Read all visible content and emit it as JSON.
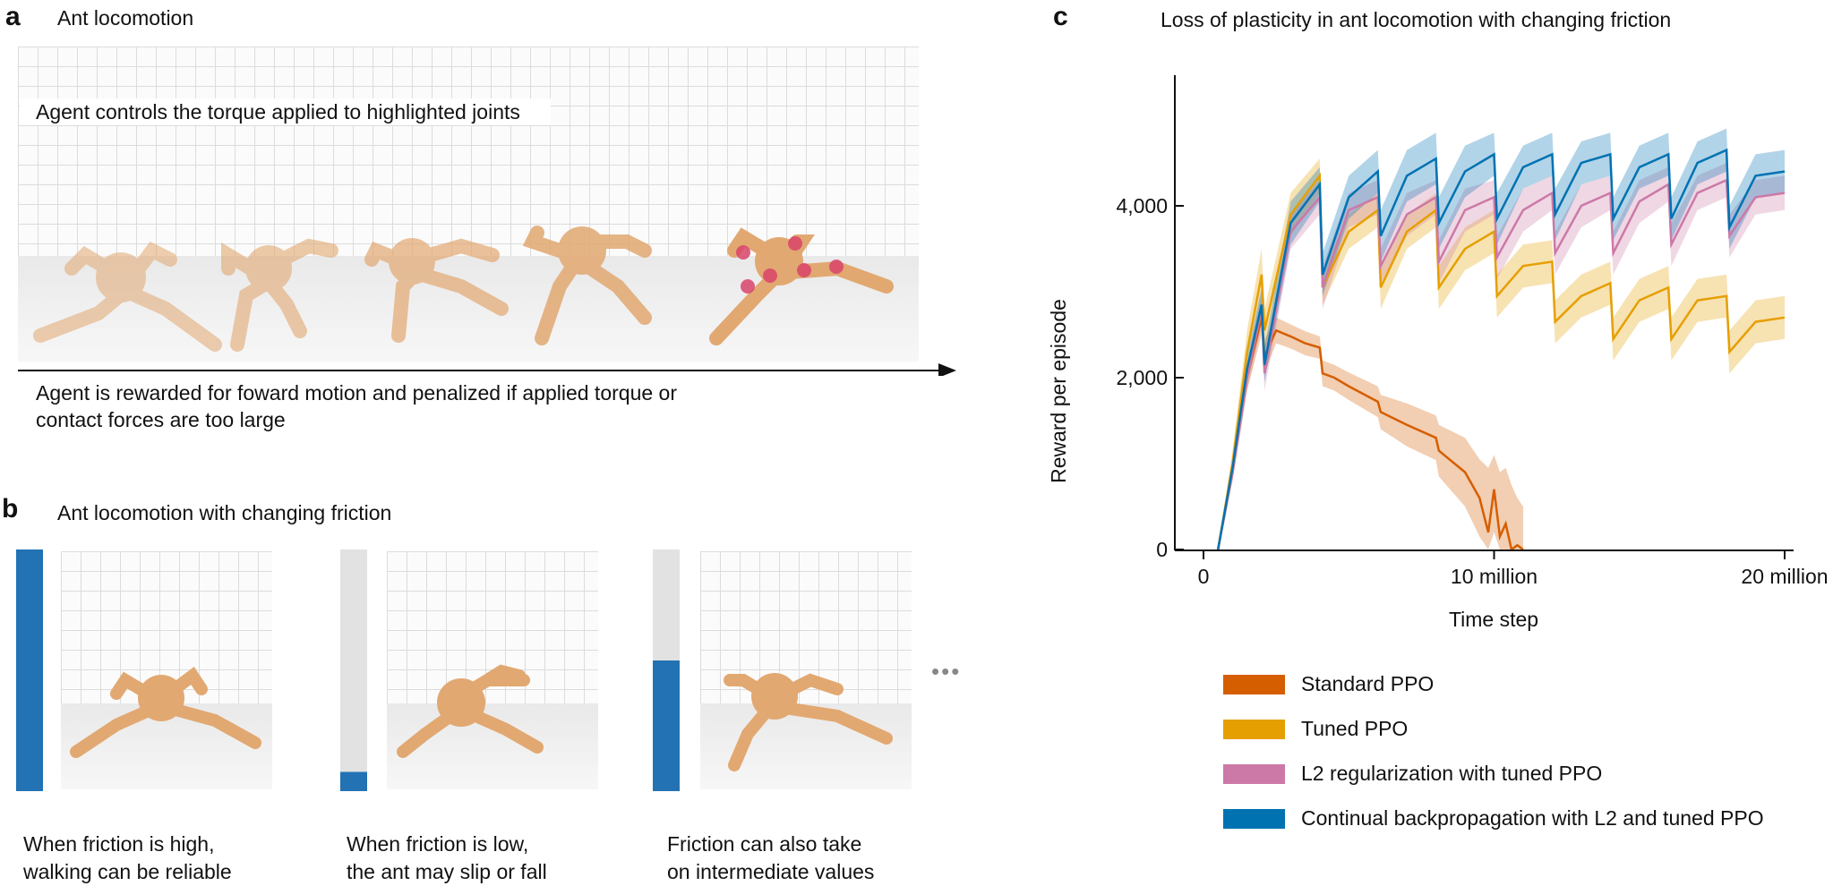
{
  "panel_a": {
    "letter": "a",
    "title": "Ant locomotion",
    "control_text": "Agent controls the torque applied to highlighted joints",
    "reward_line1": "Agent is rewarded for foward motion and penalized if applied torque or",
    "reward_line2": "contact forces are too large"
  },
  "panel_b": {
    "letter": "b",
    "title": "Ant locomotion with changing friction",
    "more_glyph": "•••",
    "cases": [
      {
        "friction_level": 1.0,
        "caption_line1": "When friction is high,",
        "caption_line2": "walking can be reliable"
      },
      {
        "friction_level": 0.08,
        "caption_line1": "When friction is low,",
        "caption_line2": "the ant may slip or fall"
      },
      {
        "friction_level": 0.54,
        "caption_line1": "Friction can also take",
        "caption_line2": "on intermediate values"
      }
    ],
    "colors": {
      "bar_fill": "#2272b4",
      "bar_empty": "#e2e2e2",
      "ant_body": "#e2a871",
      "joint": "#d9456b"
    }
  },
  "panel_c": {
    "letter": "c",
    "title": "Loss of plasticity in ant locomotion with changing friction"
  },
  "chart_data": {
    "type": "line",
    "title": "Loss of plasticity in ant locomotion with changing friction",
    "xlabel": "Time step",
    "ylabel": "Reward per episode",
    "xlim": [
      0,
      20000000
    ],
    "ylim": [
      0,
      5500
    ],
    "x_ticks": [
      0,
      10000000,
      20000000
    ],
    "x_tick_labels": [
      "0",
      "10  million",
      "20 million"
    ],
    "y_ticks": [
      0,
      2000,
      4000
    ],
    "y_tick_labels": [
      "0",
      "2,000",
      "4,000"
    ],
    "grid": false,
    "legend_position": "bottom",
    "series": [
      {
        "name": "Standard PPO",
        "color": "#d55e00",
        "x": [
          500000,
          1000000,
          1500000,
          2000000,
          2100000,
          2500000,
          3000000,
          3500000,
          4000000,
          4100000,
          4500000,
          5000000,
          6000000,
          6100000,
          7000000,
          8000000,
          8100000,
          9000000,
          9500000,
          9800000,
          10000000,
          10200000,
          10400000,
          10600000,
          10800000,
          11000000
        ],
        "y": [
          0,
          900,
          2000,
          2700,
          2250,
          2550,
          2480,
          2400,
          2350,
          2050,
          2000,
          1900,
          1720,
          1600,
          1450,
          1300,
          1150,
          900,
          600,
          200,
          700,
          150,
          300,
          0,
          50,
          0
        ],
        "band_upper": [
          0,
          1000,
          2150,
          2900,
          2450,
          2700,
          2620,
          2540,
          2480,
          2200,
          2150,
          2060,
          1900,
          1800,
          1700,
          1560,
          1450,
          1300,
          1050,
          950,
          1100,
          900,
          950,
          750,
          600,
          500
        ],
        "band_lower": [
          0,
          800,
          1850,
          2500,
          2050,
          2400,
          2340,
          2260,
          2220,
          1900,
          1850,
          1740,
          1540,
          1400,
          1200,
          1040,
          850,
          500,
          150,
          0,
          200,
          0,
          0,
          0,
          0,
          0
        ]
      },
      {
        "name": "Tuned PPO",
        "color": "#e69f00",
        "x": [
          500000,
          1000000,
          1500000,
          2000000,
          2100000,
          3000000,
          4000000,
          4100000,
          5000000,
          6000000,
          6100000,
          7000000,
          8000000,
          8100000,
          9000000,
          10000000,
          10100000,
          11000000,
          12000000,
          12100000,
          13000000,
          14000000,
          14100000,
          15000000,
          16000000,
          16100000,
          17000000,
          18000000,
          18100000,
          19000000,
          20000000
        ],
        "y": [
          0,
          1000,
          2300,
          3200,
          2550,
          3900,
          4350,
          3050,
          3700,
          3950,
          3050,
          3700,
          3950,
          3050,
          3500,
          3700,
          2950,
          3300,
          3350,
          2650,
          2950,
          3100,
          2450,
          2900,
          3050,
          2450,
          2900,
          2950,
          2300,
          2650,
          2700
        ],
        "band_upper": [
          0,
          1150,
          2550,
          3500,
          2800,
          4150,
          4550,
          3250,
          3900,
          4150,
          3300,
          3900,
          4150,
          3300,
          3750,
          3950,
          3200,
          3550,
          3600,
          2900,
          3200,
          3350,
          2700,
          3150,
          3300,
          2700,
          3150,
          3200,
          2550,
          2900,
          2950
        ],
        "band_lower": [
          0,
          850,
          2050,
          2900,
          2300,
          3650,
          4150,
          2850,
          3500,
          3750,
          2800,
          3500,
          3750,
          2800,
          3250,
          3450,
          2700,
          3050,
          3100,
          2400,
          2700,
          2850,
          2200,
          2650,
          2800,
          2200,
          2650,
          2700,
          2050,
          2400,
          2450
        ]
      },
      {
        "name": "L2 regularization with tuned PPO",
        "color": "#cc79a7",
        "x": [
          500000,
          1000000,
          1500000,
          2000000,
          2100000,
          3000000,
          4000000,
          4100000,
          5000000,
          6000000,
          6100000,
          7000000,
          8000000,
          8100000,
          9000000,
          10000000,
          10100000,
          11000000,
          12000000,
          12100000,
          13000000,
          14000000,
          14100000,
          15000000,
          16000000,
          16100000,
          17000000,
          18000000,
          18100000,
          19000000,
          20000000
        ],
        "y": [
          0,
          900,
          2000,
          2800,
          2050,
          3700,
          4100,
          3050,
          3950,
          4100,
          3300,
          3900,
          4100,
          3350,
          3950,
          4100,
          3400,
          3950,
          4150,
          3450,
          4000,
          4150,
          3450,
          4050,
          4250,
          3550,
          4150,
          4300,
          3650,
          4100,
          4150
        ],
        "band_upper": [
          0,
          1000,
          2150,
          3000,
          2250,
          3900,
          4300,
          3300,
          4150,
          4300,
          3500,
          4150,
          4300,
          3600,
          4200,
          4300,
          3650,
          4200,
          4350,
          3700,
          4250,
          4350,
          3700,
          4300,
          4450,
          3800,
          4350,
          4500,
          3900,
          4300,
          4350
        ],
        "band_lower": [
          0,
          800,
          1850,
          2600,
          1850,
          3500,
          3900,
          2800,
          3750,
          3900,
          3100,
          3650,
          3900,
          3100,
          3700,
          3900,
          3150,
          3700,
          3950,
          3200,
          3750,
          3950,
          3200,
          3800,
          4050,
          3300,
          3950,
          4100,
          3400,
          3900,
          3950
        ]
      },
      {
        "name": "Continual backpropagation with L2 and tuned PPO",
        "color": "#0072b2",
        "x": [
          500000,
          1000000,
          1500000,
          2000000,
          2100000,
          3000000,
          4000000,
          4100000,
          5000000,
          6000000,
          6100000,
          7000000,
          8000000,
          8100000,
          9000000,
          10000000,
          10100000,
          11000000,
          12000000,
          12100000,
          13000000,
          14000000,
          14100000,
          15000000,
          16000000,
          16100000,
          17000000,
          18000000,
          18100000,
          19000000,
          20000000
        ],
        "y": [
          0,
          950,
          2100,
          2850,
          2150,
          3800,
          4250,
          3200,
          4100,
          4400,
          3650,
          4350,
          4550,
          3800,
          4400,
          4600,
          3850,
          4450,
          4600,
          3900,
          4500,
          4600,
          3850,
          4450,
          4600,
          3850,
          4500,
          4650,
          3750,
          4350,
          4400
        ],
        "band_upper": [
          0,
          1050,
          2250,
          3050,
          2350,
          4050,
          4450,
          3450,
          4350,
          4650,
          3950,
          4650,
          4850,
          4100,
          4700,
          4850,
          4150,
          4700,
          4850,
          4200,
          4750,
          4850,
          4100,
          4700,
          4850,
          4100,
          4750,
          4900,
          4000,
          4600,
          4650
        ],
        "band_lower": [
          0,
          850,
          1950,
          2650,
          1950,
          3550,
          4050,
          2950,
          3850,
          4150,
          3350,
          4050,
          4250,
          3500,
          4100,
          4350,
          3550,
          4200,
          4350,
          3600,
          4250,
          4350,
          3600,
          4200,
          4350,
          3600,
          4250,
          4400,
          3500,
          4100,
          4150
        ]
      }
    ]
  }
}
